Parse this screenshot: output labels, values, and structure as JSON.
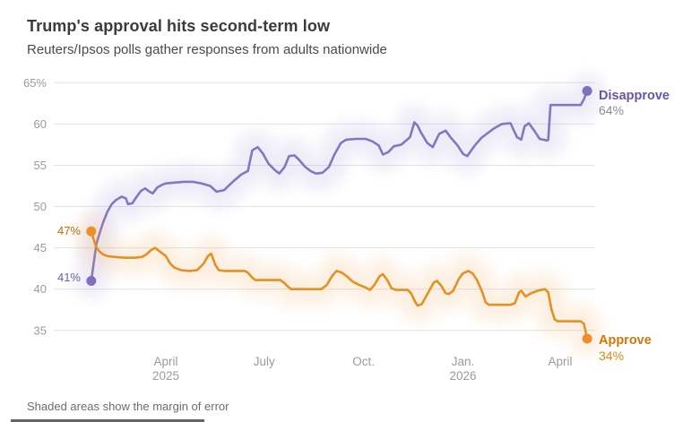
{
  "header": {
    "title": "Trump's approval hits second-term low",
    "subtitle": "Reuters/Ipsos polls gather responses from adults nationwide"
  },
  "footer": {
    "note": "Shaded areas show the margin of error"
  },
  "chart_data": {
    "type": "line",
    "x_unit": "days since 2025-01-20",
    "ylim": [
      33,
      66
    ],
    "grid": true,
    "y_ticks": [
      {
        "v": 65,
        "label": "65%"
      },
      {
        "v": 60,
        "label": "60"
      },
      {
        "v": 55,
        "label": "55"
      },
      {
        "v": 50,
        "label": "50"
      },
      {
        "v": 45,
        "label": "45"
      },
      {
        "v": 40,
        "label": "40"
      },
      {
        "v": 35,
        "label": "35"
      }
    ],
    "x_ticks": [
      {
        "d": 71,
        "lines": [
          "April",
          "2025"
        ]
      },
      {
        "d": 162,
        "lines": [
          "July"
        ]
      },
      {
        "d": 254,
        "lines": [
          "Oct."
        ]
      },
      {
        "d": 346,
        "lines": [
          "Jan.",
          "2026"
        ]
      },
      {
        "d": 436,
        "lines": [
          "April"
        ]
      }
    ],
    "series": [
      {
        "name": "Disapprove",
        "start_label": "41%",
        "end_label": "64%",
        "color": "#8477c2",
        "band_color": "#9c90d1",
        "dot_color": "#7f70bd",
        "points": [
          [
            2,
            41
          ],
          [
            5,
            43.8
          ],
          [
            7,
            45.6
          ],
          [
            10,
            46.9
          ],
          [
            13,
            48.1
          ],
          [
            17,
            49.4
          ],
          [
            21,
            50.3
          ],
          [
            25,
            50.8
          ],
          [
            30,
            51.2
          ],
          [
            34,
            51.0
          ],
          [
            36,
            50.3
          ],
          [
            40,
            50.4
          ],
          [
            44,
            51.2
          ],
          [
            48,
            51.9
          ],
          [
            52,
            52.2
          ],
          [
            56,
            51.8
          ],
          [
            59,
            51.6
          ],
          [
            63,
            52.3
          ],
          [
            67,
            52.6
          ],
          [
            71,
            52.8
          ],
          [
            79,
            52.9
          ],
          [
            88,
            53.0
          ],
          [
            96,
            53.0
          ],
          [
            104,
            52.8
          ],
          [
            112,
            52.5
          ],
          [
            118,
            51.8
          ],
          [
            125,
            52.0
          ],
          [
            133,
            53.0
          ],
          [
            141,
            53.9
          ],
          [
            147,
            54.3
          ],
          [
            151,
            56.8
          ],
          [
            156,
            57.2
          ],
          [
            161,
            56.4
          ],
          [
            166,
            55.2
          ],
          [
            172,
            54.4
          ],
          [
            176,
            54.0
          ],
          [
            181,
            54.8
          ],
          [
            185,
            56.1
          ],
          [
            190,
            56.2
          ],
          [
            194,
            55.7
          ],
          [
            200,
            54.8
          ],
          [
            205,
            54.3
          ],
          [
            210,
            54.0
          ],
          [
            216,
            54.1
          ],
          [
            222,
            54.8
          ],
          [
            227,
            56.3
          ],
          [
            233,
            57.7
          ],
          [
            238,
            58.1
          ],
          [
            247,
            58.2
          ],
          [
            256,
            58.2
          ],
          [
            262,
            57.9
          ],
          [
            268,
            57.4
          ],
          [
            272,
            56.3
          ],
          [
            277,
            56.6
          ],
          [
            282,
            57.3
          ],
          [
            289,
            57.5
          ],
          [
            297,
            58.4
          ],
          [
            301,
            60.2
          ],
          [
            304,
            59.8
          ],
          [
            307,
            59.0
          ],
          [
            313,
            57.7
          ],
          [
            318,
            57.2
          ],
          [
            324,
            58.8
          ],
          [
            330,
            59.2
          ],
          [
            335,
            58.3
          ],
          [
            341,
            57.4
          ],
          [
            346,
            56.4
          ],
          [
            350,
            56.1
          ],
          [
            357,
            57.4
          ],
          [
            363,
            58.3
          ],
          [
            368,
            58.8
          ],
          [
            374,
            59.4
          ],
          [
            382,
            60.0
          ],
          [
            390,
            60.1
          ],
          [
            396,
            58.4
          ],
          [
            400,
            58.1
          ],
          [
            403,
            59.7
          ],
          [
            407,
            60.1
          ],
          [
            412,
            59.2
          ],
          [
            417,
            58.2
          ],
          [
            424,
            58.0
          ],
          [
            425,
            58.1
          ],
          [
            427,
            62.3
          ],
          [
            455,
            62.3
          ],
          [
            458,
            63.0
          ],
          [
            461,
            64.0
          ]
        ]
      },
      {
        "name": "Approve",
        "start_label": "47%",
        "end_label": "34%",
        "color": "#e39120",
        "band_color": "#f3a452",
        "dot_color": "#ee8f2b",
        "points": [
          [
            2,
            47
          ],
          [
            5,
            45.7
          ],
          [
            7,
            45.0
          ],
          [
            10,
            44.5
          ],
          [
            13,
            44.2
          ],
          [
            17,
            44.0
          ],
          [
            24,
            43.9
          ],
          [
            34,
            43.8
          ],
          [
            42,
            43.8
          ],
          [
            49,
            43.9
          ],
          [
            53,
            44.2
          ],
          [
            57,
            44.7
          ],
          [
            61,
            45.0
          ],
          [
            65,
            44.6
          ],
          [
            71,
            44.0
          ],
          [
            75,
            43.1
          ],
          [
            79,
            42.6
          ],
          [
            85,
            42.3
          ],
          [
            93,
            42.2
          ],
          [
            100,
            42.3
          ],
          [
            106,
            43.1
          ],
          [
            110,
            44.0
          ],
          [
            113,
            44.3
          ],
          [
            117,
            42.9
          ],
          [
            120,
            42.3
          ],
          [
            125,
            42.2
          ],
          [
            144,
            42.2
          ],
          [
            147,
            42.0
          ],
          [
            151,
            41.4
          ],
          [
            154,
            41.1
          ],
          [
            177,
            41.1
          ],
          [
            181,
            40.7
          ],
          [
            184,
            40.3
          ],
          [
            187,
            40.0
          ],
          [
            215,
            40.0
          ],
          [
            220,
            40.5
          ],
          [
            225,
            41.6
          ],
          [
            229,
            42.2
          ],
          [
            234,
            42.0
          ],
          [
            239,
            41.5
          ],
          [
            244,
            40.9
          ],
          [
            250,
            40.5
          ],
          [
            256,
            40.2
          ],
          [
            260,
            39.9
          ],
          [
            264,
            40.5
          ],
          [
            269,
            41.6
          ],
          [
            272,
            41.8
          ],
          [
            276,
            41.1
          ],
          [
            280,
            40.1
          ],
          [
            284,
            39.9
          ],
          [
            295,
            39.9
          ],
          [
            298,
            39.5
          ],
          [
            302,
            38.4
          ],
          [
            304,
            38.0
          ],
          [
            308,
            38.2
          ],
          [
            314,
            39.6
          ],
          [
            319,
            40.8
          ],
          [
            322,
            41.0
          ],
          [
            326,
            40.4
          ],
          [
            330,
            39.5
          ],
          [
            333,
            39.4
          ],
          [
            337,
            39.8
          ],
          [
            342,
            41.2
          ],
          [
            346,
            41.9
          ],
          [
            351,
            42.2
          ],
          [
            355,
            41.9
          ],
          [
            359,
            41.1
          ],
          [
            364,
            39.6
          ],
          [
            367,
            38.4
          ],
          [
            370,
            38.1
          ],
          [
            390,
            38.1
          ],
          [
            394,
            38.3
          ],
          [
            398,
            39.6
          ],
          [
            400,
            39.8
          ],
          [
            404,
            39.1
          ],
          [
            409,
            39.5
          ],
          [
            415,
            39.8
          ],
          [
            422,
            40.0
          ],
          [
            425,
            39.6
          ],
          [
            428,
            37.5
          ],
          [
            431,
            36.3
          ],
          [
            434,
            36.1
          ],
          [
            455,
            36.1
          ],
          [
            458,
            35.8
          ],
          [
            461,
            34.0
          ]
        ]
      }
    ]
  }
}
